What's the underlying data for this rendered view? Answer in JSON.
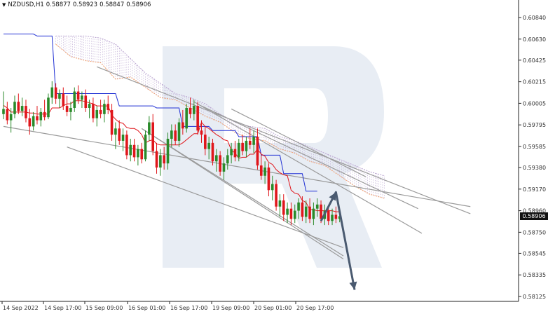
{
  "header": {
    "symbol_label": "NZDUSD,H1",
    "ohlc": [
      "0.58877",
      "0.58923",
      "0.58847",
      "0.58906"
    ]
  },
  "current_price": "0.58906",
  "colors": {
    "bull": "#2a8a2a",
    "bear": "#e0161b",
    "tenkan": "#e0161b",
    "kijun": "#1f2fd4",
    "cloud_up": "#f3a06a",
    "cloud_down": "#b8a2cf",
    "trendline": "#9a9a9a",
    "forecast_arrow": "#4a5a70",
    "watermark": "#e8edf4"
  },
  "chart_data": {
    "type": "candlestick",
    "y_ticks": [
      "0.60840",
      "0.60630",
      "0.60425",
      "0.60215",
      "0.60005",
      "0.59795",
      "0.59585",
      "0.59380",
      "0.59170",
      "0.58960",
      "0.58750",
      "0.58545",
      "0.58335",
      "0.58125"
    ],
    "x_ticks": [
      "14 Sep 2022",
      "14 Sep 17:00",
      "15 Sep 09:00",
      "16 Sep 01:00",
      "16 Sep 17:00",
      "19 Sep 09:00",
      "20 Sep 01:00",
      "20 Sep 17:00"
    ],
    "ylim": [
      0.58125,
      0.61045
    ],
    "candles": [
      [
        0.599,
        0.6012,
        0.5985,
        0.5995
      ],
      [
        0.5995,
        0.6002,
        0.598,
        0.5984
      ],
      [
        0.5984,
        0.5996,
        0.5972,
        0.599
      ],
      [
        0.599,
        0.6008,
        0.5986,
        0.6002
      ],
      [
        0.6002,
        0.601,
        0.599,
        0.5993
      ],
      [
        0.5993,
        0.6006,
        0.5988,
        0.5998
      ],
      [
        0.5998,
        0.6004,
        0.5982,
        0.5986
      ],
      [
        0.5986,
        0.5995,
        0.597,
        0.5978
      ],
      [
        0.5978,
        0.5992,
        0.5974,
        0.5988
      ],
      [
        0.5988,
        0.5998,
        0.598,
        0.5984
      ],
      [
        0.5984,
        0.5996,
        0.5978,
        0.5992
      ],
      [
        0.5992,
        0.6004,
        0.5984,
        0.5987
      ],
      [
        0.5987,
        0.601,
        0.5985,
        0.6006
      ],
      [
        0.6006,
        0.6022,
        0.6,
        0.6016
      ],
      [
        0.6016,
        0.602,
        0.6,
        0.6005
      ],
      [
        0.6005,
        0.6014,
        0.5996,
        0.601
      ],
      [
        0.601,
        0.6016,
        0.5994,
        0.5998
      ],
      [
        0.5998,
        0.6008,
        0.5988,
        0.5992
      ],
      [
        0.5992,
        0.6002,
        0.5984,
        0.5996
      ],
      [
        0.5996,
        0.6016,
        0.5992,
        0.6012
      ],
      [
        0.6012,
        0.6018,
        0.6,
        0.6004
      ],
      [
        0.6004,
        0.6012,
        0.5996,
        0.6008
      ],
      [
        0.6008,
        0.6014,
        0.5992,
        0.5996
      ],
      [
        0.5996,
        0.6004,
        0.5986,
        0.6
      ],
      [
        0.6,
        0.6006,
        0.5982,
        0.5986
      ],
      [
        0.5986,
        0.5998,
        0.5978,
        0.5994
      ],
      [
        0.5994,
        0.6004,
        0.5986,
        0.599
      ],
      [
        0.599,
        0.6004,
        0.5982,
        0.6
      ],
      [
        0.6,
        0.6008,
        0.599,
        0.5994
      ],
      [
        0.5994,
        0.6,
        0.5964,
        0.597
      ],
      [
        0.597,
        0.5982,
        0.5956,
        0.5976
      ],
      [
        0.5976,
        0.5984,
        0.596,
        0.5964
      ],
      [
        0.5964,
        0.5976,
        0.5954,
        0.597
      ],
      [
        0.597,
        0.5974,
        0.5946,
        0.595
      ],
      [
        0.595,
        0.5966,
        0.5944,
        0.596
      ],
      [
        0.596,
        0.5966,
        0.5944,
        0.5948
      ],
      [
        0.5948,
        0.596,
        0.594,
        0.5956
      ],
      [
        0.5956,
        0.5962,
        0.5942,
        0.5946
      ],
      [
        0.5946,
        0.5974,
        0.5944,
        0.597
      ],
      [
        0.597,
        0.5988,
        0.5964,
        0.5982
      ],
      [
        0.5982,
        0.599,
        0.595,
        0.5954
      ],
      [
        0.5954,
        0.5962,
        0.5932,
        0.5938
      ],
      [
        0.5938,
        0.5956,
        0.593,
        0.595
      ],
      [
        0.595,
        0.5958,
        0.5936,
        0.5942
      ],
      [
        0.5942,
        0.5972,
        0.5936,
        0.5966
      ],
      [
        0.5966,
        0.598,
        0.5958,
        0.5974
      ],
      [
        0.5974,
        0.598,
        0.596,
        0.5964
      ],
      [
        0.5964,
        0.5986,
        0.5958,
        0.5982
      ],
      [
        0.5982,
        0.5994,
        0.597,
        0.5976
      ],
      [
        0.5976,
        0.6,
        0.5972,
        0.5996
      ],
      [
        0.5996,
        0.6006,
        0.5986,
        0.599
      ],
      [
        0.599,
        0.6004,
        0.5984,
        0.5998
      ],
      [
        0.5998,
        0.6002,
        0.597,
        0.5974
      ],
      [
        0.5974,
        0.5984,
        0.5962,
        0.597
      ],
      [
        0.597,
        0.5978,
        0.595,
        0.5956
      ],
      [
        0.5956,
        0.5968,
        0.5946,
        0.5962
      ],
      [
        0.5962,
        0.5966,
        0.594,
        0.5944
      ],
      [
        0.5944,
        0.5956,
        0.5934,
        0.595
      ],
      [
        0.595,
        0.5954,
        0.593,
        0.5934
      ],
      [
        0.5934,
        0.5948,
        0.5926,
        0.5942
      ],
      [
        0.5942,
        0.5956,
        0.5936,
        0.595
      ],
      [
        0.595,
        0.5962,
        0.5942,
        0.5956
      ],
      [
        0.5956,
        0.5964,
        0.5944,
        0.5948
      ],
      [
        0.5948,
        0.5966,
        0.5944,
        0.5962
      ],
      [
        0.5962,
        0.597,
        0.595,
        0.5954
      ],
      [
        0.5954,
        0.5968,
        0.5948,
        0.5964
      ],
      [
        0.5964,
        0.5976,
        0.5956,
        0.596
      ],
      [
        0.596,
        0.5974,
        0.5952,
        0.5968
      ],
      [
        0.5968,
        0.5976,
        0.5936,
        0.594
      ],
      [
        0.594,
        0.595,
        0.5926,
        0.593
      ],
      [
        0.593,
        0.5944,
        0.5922,
        0.5938
      ],
      [
        0.5938,
        0.5942,
        0.591,
        0.5916
      ],
      [
        0.5916,
        0.593,
        0.5906,
        0.5922
      ],
      [
        0.5922,
        0.5926,
        0.5896,
        0.59
      ],
      [
        0.59,
        0.5912,
        0.589,
        0.5906
      ],
      [
        0.5906,
        0.5912,
        0.5886,
        0.5892
      ],
      [
        0.5892,
        0.5904,
        0.5884,
        0.5898
      ],
      [
        0.5898,
        0.5904,
        0.5882,
        0.5888
      ],
      [
        0.5888,
        0.5902,
        0.5884,
        0.5896
      ],
      [
        0.5896,
        0.5908,
        0.5888,
        0.5904
      ],
      [
        0.5904,
        0.591,
        0.5886,
        0.589
      ],
      [
        0.589,
        0.5906,
        0.5884,
        0.59
      ],
      [
        0.59,
        0.5908,
        0.5884,
        0.5888
      ],
      [
        0.5888,
        0.5904,
        0.5882,
        0.5898
      ],
      [
        0.5898,
        0.5908,
        0.589,
        0.5902
      ],
      [
        0.5902,
        0.5906,
        0.5884,
        0.5888
      ],
      [
        0.5888,
        0.5902,
        0.5882,
        0.5896
      ],
      [
        0.5896,
        0.59,
        0.5882,
        0.5886
      ],
      [
        0.5886,
        0.5898,
        0.5882,
        0.5892
      ],
      [
        0.5892,
        0.59,
        0.5884,
        0.5888
      ],
      [
        0.5888,
        0.5892,
        0.58847,
        0.58906
      ]
    ],
    "kijun": [
      [
        0,
        0.6068
      ],
      [
        8,
        0.6068
      ],
      [
        9,
        0.6066
      ],
      [
        13,
        0.6066
      ],
      [
        14,
        0.601
      ],
      [
        30,
        0.601
      ],
      [
        31,
        0.5998
      ],
      [
        40,
        0.5998
      ],
      [
        41,
        0.5996
      ],
      [
        47,
        0.5996
      ],
      [
        48,
        0.5978
      ],
      [
        55,
        0.5978
      ],
      [
        56,
        0.5974
      ],
      [
        62,
        0.5974
      ],
      [
        63,
        0.5968
      ],
      [
        68,
        0.5968
      ],
      [
        69,
        0.595
      ],
      [
        74,
        0.595
      ],
      [
        75,
        0.5932
      ],
      [
        80,
        0.5932
      ],
      [
        81,
        0.5915
      ],
      [
        84,
        0.5915
      ]
    ],
    "cloud_span_a": [
      [
        14,
        0.6058
      ],
      [
        18,
        0.6046
      ],
      [
        22,
        0.6042
      ],
      [
        26,
        0.604
      ],
      [
        30,
        0.6024
      ],
      [
        34,
        0.6026
      ],
      [
        38,
        0.6016
      ],
      [
        42,
        0.6006
      ],
      [
        46,
        0.6004
      ],
      [
        50,
        0.5996
      ],
      [
        54,
        0.5988
      ],
      [
        58,
        0.5982
      ],
      [
        62,
        0.5972
      ],
      [
        66,
        0.5966
      ],
      [
        70,
        0.5964
      ],
      [
        74,
        0.5956
      ],
      [
        78,
        0.5952
      ],
      [
        82,
        0.5944
      ],
      [
        86,
        0.594
      ],
      [
        90,
        0.593
      ],
      [
        94,
        0.592
      ],
      [
        98,
        0.5912
      ],
      [
        102,
        0.5908
      ]
    ],
    "cloud_span_b": [
      [
        14,
        0.6066
      ],
      [
        18,
        0.6066
      ],
      [
        22,
        0.6066
      ],
      [
        26,
        0.6064
      ],
      [
        30,
        0.6058
      ],
      [
        34,
        0.6044
      ],
      [
        38,
        0.603
      ],
      [
        42,
        0.602
      ],
      [
        46,
        0.601
      ],
      [
        50,
        0.6006
      ],
      [
        54,
        0.6
      ],
      [
        58,
        0.599
      ],
      [
        62,
        0.5982
      ],
      [
        66,
        0.5978
      ],
      [
        70,
        0.5976
      ],
      [
        74,
        0.5968
      ],
      [
        78,
        0.5964
      ],
      [
        82,
        0.5958
      ],
      [
        86,
        0.5952
      ],
      [
        90,
        0.5946
      ],
      [
        94,
        0.594
      ],
      [
        98,
        0.5934
      ],
      [
        102,
        0.593
      ]
    ],
    "trendlines": [
      [
        [
          0,
          0.5978
        ],
        [
          125,
          0.59
        ]
      ],
      [
        [
          25,
          0.6036
        ],
        [
          125,
          0.5893
        ]
      ],
      [
        [
          17,
          0.5958
        ],
        [
          91,
          0.586
        ]
      ],
      [
        [
          51,
          0.6002
        ],
        [
          112,
          0.5874
        ]
      ],
      [
        [
          37,
          0.5976
        ],
        [
          91,
          0.5849
        ]
      ],
      [
        [
          37,
          0.5976
        ],
        [
          91,
          0.5852
        ]
      ],
      [
        [
          61,
          0.5995
        ],
        [
          97,
          0.5929
        ]
      ],
      [
        [
          53,
          0.5998
        ],
        [
          111,
          0.5898
        ]
      ]
    ],
    "forecast_arrow": [
      [
        85,
        0.5886
      ],
      [
        89,
        0.5914
      ],
      [
        94,
        0.5819
      ]
    ]
  }
}
